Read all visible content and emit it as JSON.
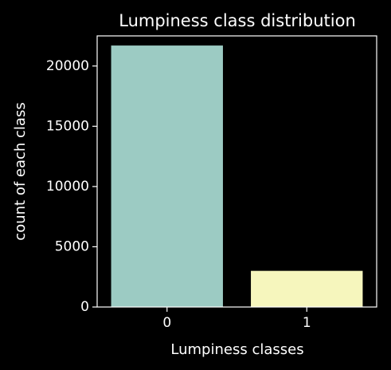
{
  "chart_data": {
    "type": "bar",
    "title": "Lumpiness class distribution",
    "xlabel": "Lumpiness classes",
    "ylabel": "count of each class",
    "categories": [
      "0",
      "1"
    ],
    "values": [
      21700,
      3000
    ],
    "bar_colors": [
      "#9ccbc3",
      "#f6f6bd"
    ],
    "ylim": [
      0,
      22500
    ],
    "yticks": [
      0,
      5000,
      10000,
      15000,
      20000
    ],
    "ytick_labels": [
      "0",
      "5000",
      "10000",
      "15000",
      "20000"
    ],
    "grid": false,
    "legend": "none",
    "background": "#000000",
    "axis_color": "#ffffff"
  }
}
